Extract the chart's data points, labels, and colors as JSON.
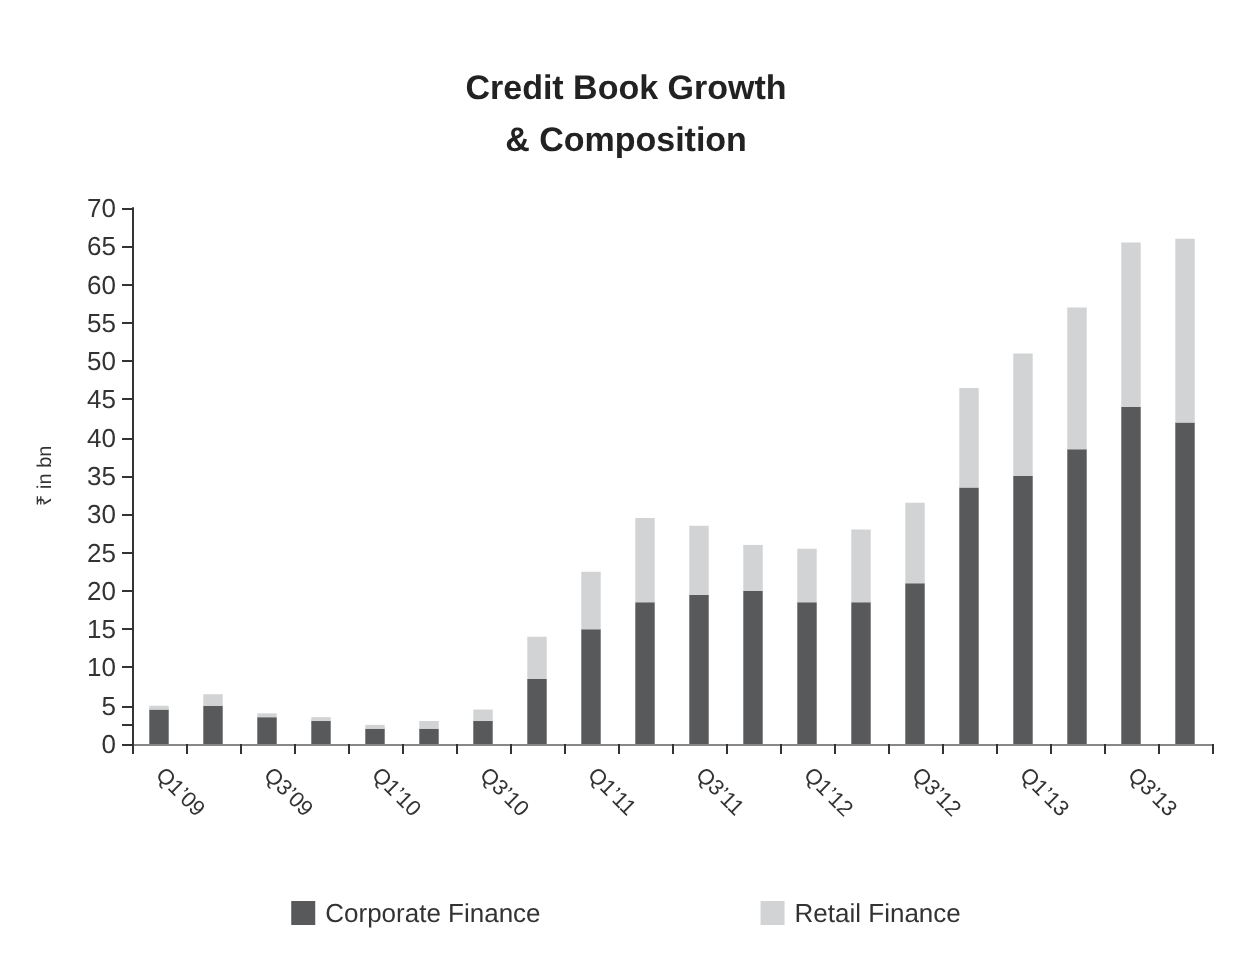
{
  "chart_data": {
    "type": "bar",
    "title": "Credit Book Growth\n& Composition",
    "ylabel": "₹ in bn",
    "categories": [
      "Q1’09",
      null,
      "Q3’09",
      null,
      "Q1’10",
      null,
      "Q3’10",
      null,
      "Q1’11",
      null,
      "Q3’11",
      null,
      "Q1’12",
      null,
      "Q3’12",
      null,
      "Q1’13",
      null,
      "Q3’13",
      null
    ],
    "stacked": true,
    "series": [
      {
        "name": "Corporate Finance",
        "color": "#58595b",
        "values": [
          4.5,
          5,
          3.5,
          3,
          2,
          2,
          3,
          8.5,
          15,
          18.5,
          19.5,
          20,
          18.5,
          18.5,
          21,
          33.5,
          35,
          38.5,
          44,
          42
        ]
      },
      {
        "name": "Retail Finance",
        "color": "#d1d3d4",
        "values": [
          0.5,
          1.5,
          0.5,
          0.5,
          0.5,
          1,
          1.5,
          5.5,
          7.5,
          11,
          9,
          6,
          7,
          9.5,
          10.5,
          13,
          16,
          18.5,
          21.5,
          24
        ]
      }
    ],
    "ylim": [
      0,
      70
    ],
    "yticks": [
      0,
      {
        "value": 2.5,
        "label": null
      },
      5,
      10,
      15,
      20,
      25,
      30,
      35,
      40,
      45,
      50,
      55,
      60,
      65,
      70
    ],
    "legend": "bottom",
    "grid": false
  }
}
